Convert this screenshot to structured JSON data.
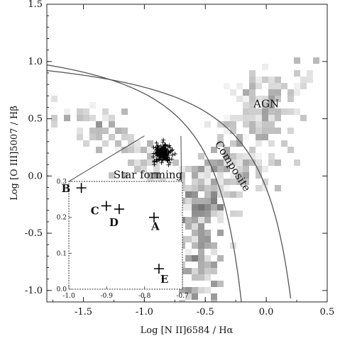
{
  "chart_data": {
    "type": "scatter",
    "xlabel": "Log [N II]6584 / Hα",
    "ylabel": "Log [O III]5007 / Hβ",
    "xlim": [
      -1.8,
      0.5
    ],
    "ylim": [
      -1.1,
      1.5
    ],
    "xticks": [
      "-1.5",
      "-1.0",
      "-0.5",
      "0.0",
      "0.5"
    ],
    "xtick_values": [
      -1.5,
      -1.0,
      -0.5,
      0.0,
      0.5
    ],
    "yticks": [
      "-1.0",
      "-0.5",
      "0.0",
      "0.5",
      "1.0",
      "1.5"
    ],
    "ytick_values": [
      -1.0,
      -0.5,
      0.0,
      0.5,
      1.0,
      1.5
    ],
    "region_labels": [
      {
        "text": "AGN",
        "x": 0.0,
        "y": 0.6,
        "rotate": 0
      },
      {
        "text": "Star forming",
        "x": -0.97,
        "y": -0.02,
        "rotate": 0
      },
      {
        "text": "Composite",
        "x": -0.3,
        "y": 0.07,
        "rotate": 58
      }
    ],
    "density_regions": [
      {
        "name": "star-forming-branch",
        "x0": -1.55,
        "y0": 0.6,
        "x1": -0.45,
        "y1": -0.4,
        "width": 0.42,
        "count": 130,
        "max_gray": 0.55
      },
      {
        "name": "agn-plume",
        "x0": -0.4,
        "y0": -0.2,
        "x1": 0.1,
        "y1": 0.85,
        "width": 0.55,
        "count": 220,
        "max_gray": 0.5
      },
      {
        "name": "composite-stem",
        "x0": -0.55,
        "y0": -1.05,
        "x1": -0.45,
        "y1": 0.1,
        "width": 0.35,
        "count": 150,
        "max_gray": 0.75
      }
    ],
    "curves": [
      {
        "name": "kauffmann",
        "function": "0.61/(x-0.05)+1.3",
        "x_range": [
          -1.8,
          -0.2
        ]
      },
      {
        "name": "kewley",
        "function": "0.61/(x-0.47)+1.19",
        "x_range": [
          -1.8,
          0.2
        ]
      }
    ],
    "highlight_cluster": {
      "x_range": [
        -1.0,
        -0.7
      ],
      "y_range": [
        0.05,
        0.35
      ]
    },
    "inset": {
      "xlim": [
        -1.0,
        -0.7
      ],
      "ylim": [
        0.0,
        0.3
      ],
      "xticks": [
        "-1.0",
        "-0.9",
        "-0.8",
        "-0.7"
      ],
      "xtick_values": [
        -1.0,
        -0.9,
        -0.8,
        -0.7
      ],
      "yticks": [
        "0.0",
        "0.1",
        "0.2",
        "0.3"
      ],
      "ytick_values": [
        0.0,
        0.1,
        0.2,
        0.3
      ],
      "points": [
        {
          "label": "A",
          "x": -0.775,
          "y": 0.2
        },
        {
          "label": "B",
          "x": -0.967,
          "y": 0.282
        },
        {
          "label": "C",
          "x": -0.901,
          "y": 0.232
        },
        {
          "label": "D",
          "x": -0.867,
          "y": 0.223
        },
        {
          "label": "E",
          "x": -0.762,
          "y": 0.057
        }
      ]
    }
  }
}
